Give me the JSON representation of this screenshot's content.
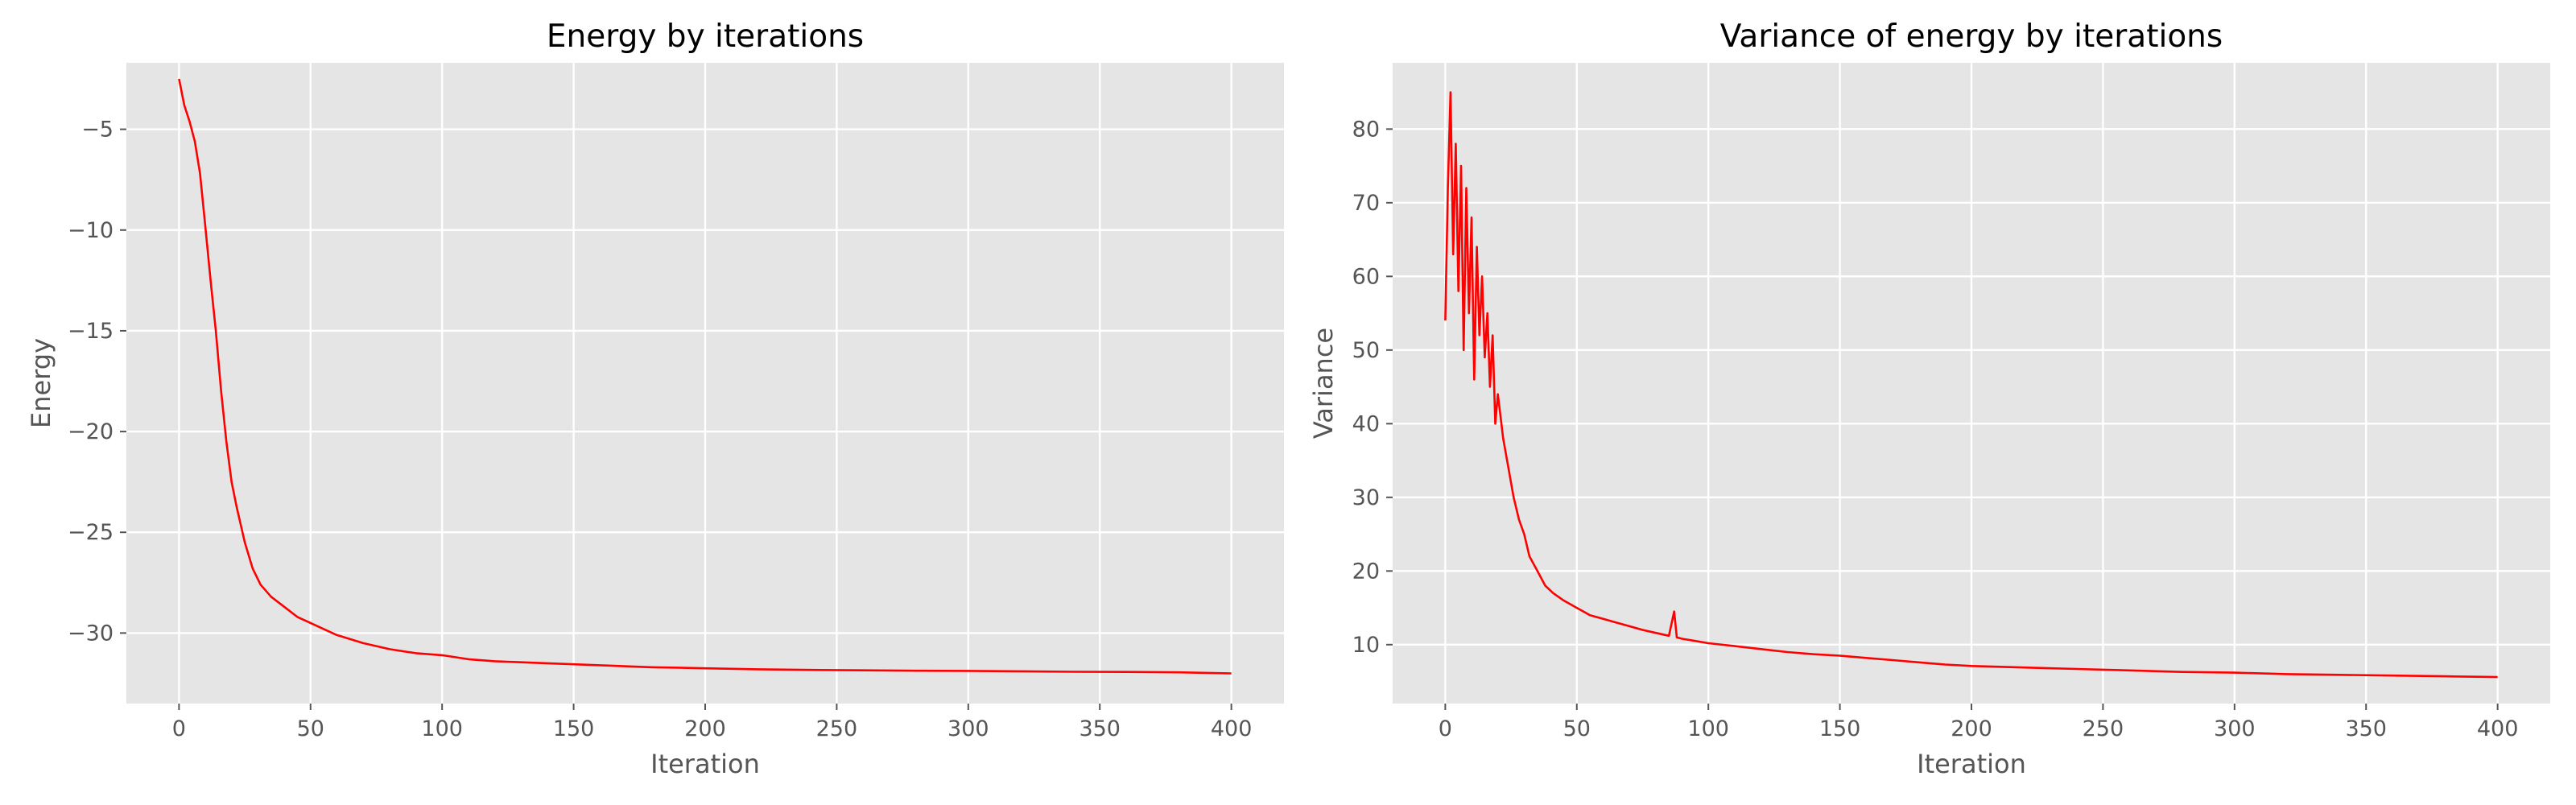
{
  "chart_data": [
    {
      "type": "line",
      "title": "Energy by iterations",
      "xlabel": "Iteration",
      "ylabel": "Energy",
      "xlim": [
        -20,
        420
      ],
      "ylim": [
        -33.5,
        -1.7
      ],
      "xticks": [
        0,
        50,
        100,
        150,
        200,
        250,
        300,
        350,
        400
      ],
      "yticks": [
        -30,
        -25,
        -20,
        -15,
        -10,
        -5
      ],
      "grid": true,
      "series": [
        {
          "color": "#ff0000",
          "x": [
            0,
            2,
            4,
            6,
            8,
            10,
            12,
            14,
            16,
            18,
            20,
            22,
            25,
            28,
            31,
            35,
            40,
            45,
            50,
            55,
            60,
            70,
            80,
            90,
            100,
            110,
            120,
            130,
            140,
            150,
            160,
            170,
            180,
            190,
            200,
            220,
            240,
            260,
            280,
            300,
            320,
            340,
            360,
            380,
            400
          ],
          "y": [
            -2.5,
            -3.8,
            -4.6,
            -5.6,
            -7.2,
            -9.8,
            -12.5,
            -15.0,
            -18.0,
            -20.5,
            -22.5,
            -23.8,
            -25.5,
            -26.8,
            -27.6,
            -28.2,
            -28.7,
            -29.2,
            -29.5,
            -29.8,
            -30.1,
            -30.5,
            -30.8,
            -31.0,
            -31.1,
            -31.3,
            -31.4,
            -31.45,
            -31.5,
            -31.55,
            -31.6,
            -31.65,
            -31.7,
            -31.72,
            -31.75,
            -31.8,
            -31.83,
            -31.85,
            -31.87,
            -31.88,
            -31.9,
            -31.92,
            -31.93,
            -31.95,
            -32.0
          ]
        }
      ]
    },
    {
      "type": "line",
      "title": "Variance of energy by iterations",
      "xlabel": "Iteration",
      "ylabel": "Variance",
      "xlim": [
        -20,
        420
      ],
      "ylim": [
        2,
        89
      ],
      "xticks": [
        0,
        50,
        100,
        150,
        200,
        250,
        300,
        350,
        400
      ],
      "yticks": [
        10,
        20,
        30,
        40,
        50,
        60,
        70,
        80
      ],
      "grid": true,
      "series": [
        {
          "color": "#ff0000",
          "x": [
            0,
            1,
            2,
            3,
            4,
            5,
            6,
            7,
            8,
            9,
            10,
            11,
            12,
            13,
            14,
            15,
            16,
            17,
            18,
            19,
            20,
            22,
            24,
            26,
            28,
            30,
            32,
            35,
            38,
            41,
            45,
            50,
            55,
            60,
            65,
            70,
            75,
            80,
            85,
            87,
            88,
            90,
            95,
            100,
            110,
            120,
            130,
            140,
            150,
            160,
            170,
            180,
            190,
            200,
            220,
            240,
            260,
            280,
            300,
            320,
            340,
            360,
            380,
            400
          ],
          "y": [
            54,
            72,
            85,
            63,
            78,
            58,
            75,
            50,
            72,
            55,
            68,
            46,
            64,
            52,
            60,
            49,
            55,
            45,
            52,
            40,
            44,
            38,
            34,
            30,
            27,
            25,
            22,
            20,
            18,
            17,
            16,
            15,
            14,
            13.5,
            13,
            12.5,
            12,
            11.6,
            11.2,
            14.5,
            11,
            10.8,
            10.5,
            10.2,
            9.8,
            9.4,
            9.0,
            8.7,
            8.5,
            8.2,
            7.9,
            7.6,
            7.3,
            7.1,
            6.9,
            6.7,
            6.5,
            6.3,
            6.2,
            6.0,
            5.9,
            5.8,
            5.7,
            5.6
          ]
        }
      ]
    }
  ]
}
